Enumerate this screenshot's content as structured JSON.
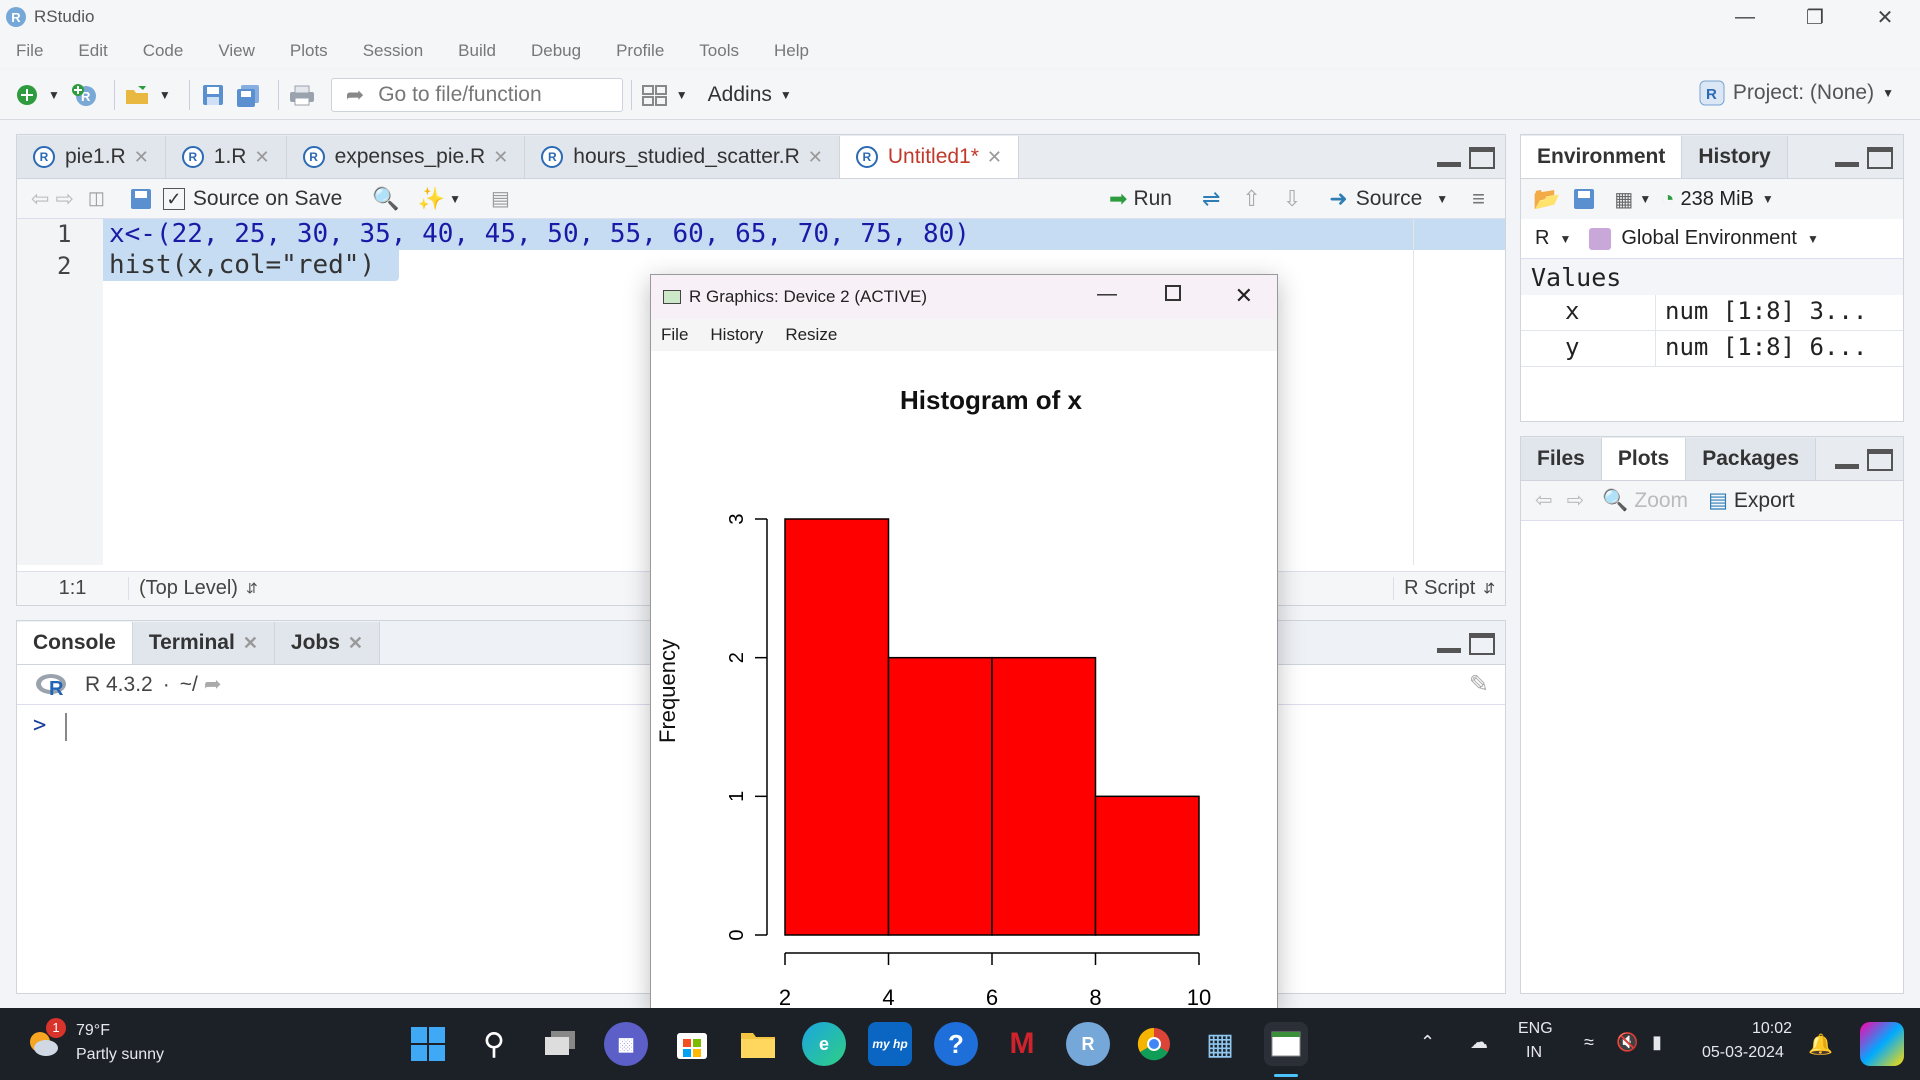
{
  "window": {
    "title": "RStudio"
  },
  "menu": [
    "File",
    "Edit",
    "Code",
    "View",
    "Plots",
    "Session",
    "Build",
    "Debug",
    "Profile",
    "Tools",
    "Help"
  ],
  "toolbar": {
    "goto_placeholder": "Go to file/function",
    "addins": "Addins",
    "project": "Project: (None)"
  },
  "editor": {
    "tabs": [
      "pie1.R",
      "1.R",
      "expenses_pie.R",
      "hours_studied_scatter.R",
      "Untitled1*"
    ],
    "source_on_save": "Source on Save",
    "run": "Run",
    "source": "Source",
    "line_numbers": [
      "1",
      "2"
    ],
    "code_lines": [
      "x<-(22, 25, 30, 35, 40, 45, 50, 55, 60, 65, 70, 75, 80)",
      "hist(x,col=\"red\")"
    ],
    "status_pos": "1:1",
    "status_scope": "(Top Level)",
    "status_type": "R Script"
  },
  "console": {
    "tabs": [
      "Console",
      "Terminal",
      "Jobs"
    ],
    "version": "R 4.3.2",
    "path": "~/",
    "prompt": ">"
  },
  "environment": {
    "tabs": [
      "Environment",
      "History"
    ],
    "memory": "238 MiB",
    "lang": "R",
    "scope": "Global Environment",
    "section": "Values",
    "rows": [
      {
        "name": "x",
        "value": "num [1:8] 3..."
      },
      {
        "name": "y",
        "value": "num [1:8] 6..."
      }
    ]
  },
  "files": {
    "tabs": [
      "Files",
      "Plots",
      "Packages"
    ],
    "zoom": "Zoom",
    "export": "Export"
  },
  "graphics": {
    "title": "R Graphics: Device 2 (ACTIVE)",
    "menu": [
      "File",
      "History",
      "Resize"
    ]
  },
  "chart_data": {
    "type": "bar",
    "title": "Histogram of x",
    "xlabel": "",
    "ylabel": "Frequency",
    "bins": [
      [
        2,
        4
      ],
      [
        4,
        6
      ],
      [
        6,
        8
      ],
      [
        8,
        10
      ]
    ],
    "values": [
      3,
      2,
      2,
      1
    ],
    "xticks": [
      "2",
      "4",
      "6",
      "8",
      "10"
    ],
    "yticks": [
      "0",
      "1",
      "2",
      "3"
    ],
    "xlim": [
      2,
      10
    ],
    "ylim": [
      0,
      3
    ],
    "color": "#ff0000"
  },
  "taskbar": {
    "weather_temp": "79°F",
    "weather_desc": "Partly sunny",
    "weather_badge": "1",
    "lang1": "ENG",
    "lang2": "IN",
    "time": "10:02",
    "date": "05-03-2024"
  }
}
